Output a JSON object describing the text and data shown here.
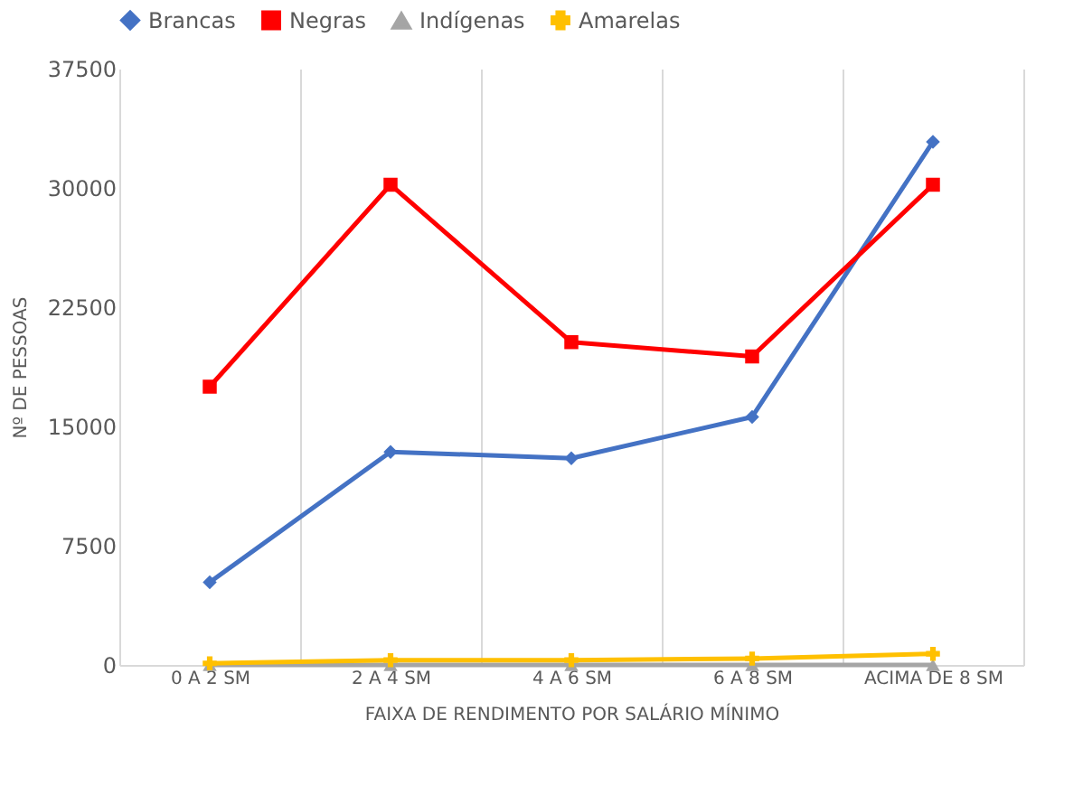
{
  "chart_data": {
    "type": "line",
    "xlabel": "FAIXA DE RENDIMENTO POR SALÁRIO MÍNIMO",
    "ylabel": "Nº DE PESSOAS",
    "categories": [
      "0 A 2 SM",
      "2 A 4 SM",
      "4 A 6 SM",
      "6 A 8 SM",
      "ACIMA DE 8 SM"
    ],
    "series": [
      {
        "name": "Brancas",
        "color": "#4472c4",
        "marker": "diamond",
        "values": [
          5200,
          13400,
          13000,
          15600,
          32900
        ]
      },
      {
        "name": "Negras",
        "color": "#ff0000",
        "marker": "square",
        "values": [
          17500,
          30200,
          20300,
          19400,
          30200
        ]
      },
      {
        "name": "Indígenas",
        "color": "#a5a5a5",
        "marker": "triangle",
        "values": [
          0,
          0,
          0,
          0,
          0
        ]
      },
      {
        "name": "Amarelas",
        "color": "#ffc000",
        "marker": "cross",
        "values": [
          100,
          300,
          300,
          400,
          700
        ]
      }
    ],
    "ylim": [
      0,
      37500
    ],
    "yticks": [
      0,
      7500,
      15000,
      22500,
      30000,
      37500
    ],
    "grid": "x",
    "legend": "top"
  }
}
